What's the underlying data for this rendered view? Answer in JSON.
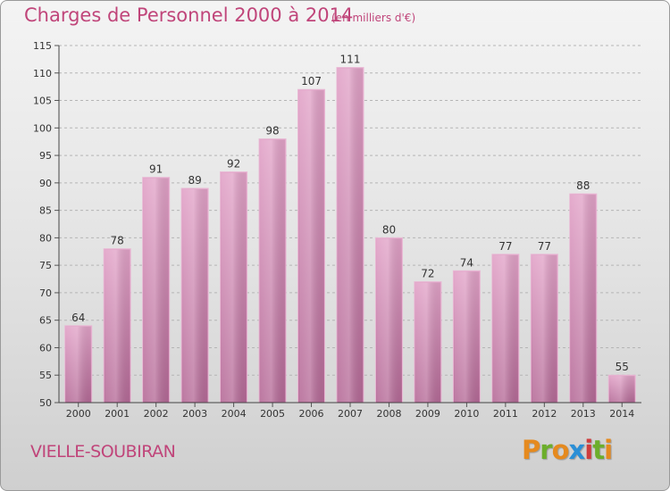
{
  "chart_data": {
    "type": "bar",
    "title": "Charges de Personnel 2000 à 2014",
    "subtitle": "(en milliers d'€)",
    "categories": [
      "2000",
      "2001",
      "2002",
      "2003",
      "2004",
      "2005",
      "2006",
      "2007",
      "2008",
      "2009",
      "2010",
      "2011",
      "2012",
      "2013",
      "2014"
    ],
    "values": [
      64,
      78,
      91,
      89,
      92,
      98,
      107,
      111,
      80,
      72,
      74,
      77,
      77,
      88,
      55
    ],
    "ylim": [
      50,
      115
    ],
    "yticks": [
      50,
      55,
      60,
      65,
      70,
      75,
      80,
      85,
      90,
      95,
      100,
      105,
      110,
      115
    ],
    "grid": true,
    "bar_color": "#d98fb8"
  },
  "footer": {
    "municipality": "VIELLE-SOUBIRAN",
    "brand_letters": [
      "P",
      "r",
      "o",
      "x",
      "i",
      "t",
      "i"
    ],
    "brand_colors": [
      "#e58a1f",
      "#6cae2b",
      "#e58a1f",
      "#2b8fd6",
      "#cf3d3d",
      "#6cae2b",
      "#e58a1f"
    ]
  }
}
